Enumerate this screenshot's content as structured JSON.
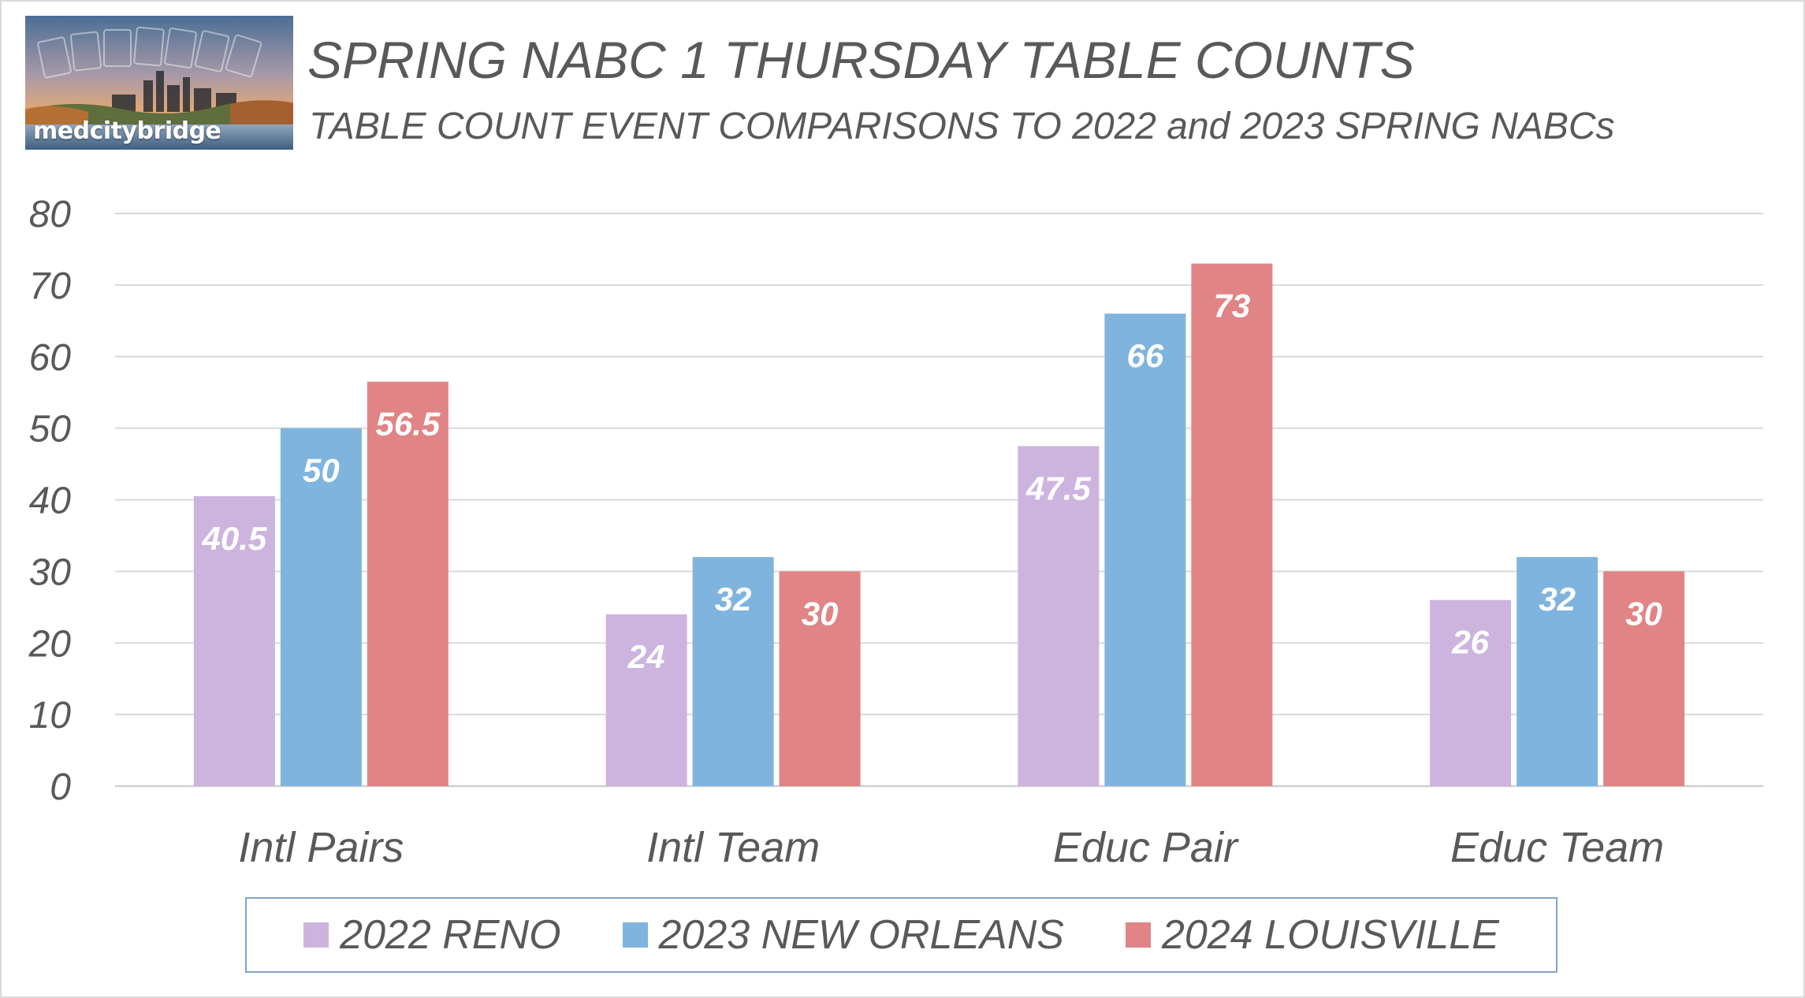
{
  "logo": {
    "text": "medcitybridge"
  },
  "chart_data": {
    "type": "bar",
    "title": "SPRING NABC 1 THURSDAY TABLE COUNTS",
    "subtitle": "TABLE COUNT EVENT COMPARISONS TO 2022 and 2023 SPRING NABCs",
    "categories": [
      "Intl Pairs",
      "Intl Team",
      "Educ Pair",
      "Educ Team"
    ],
    "series": [
      {
        "name": "2022 RENO",
        "color": "#cdb4df",
        "values": [
          40.5,
          24,
          47.5,
          26
        ],
        "labels": [
          "40.5",
          "24",
          "47.5",
          "26"
        ]
      },
      {
        "name": "2023 NEW ORLEANS",
        "color": "#7fb4de",
        "values": [
          50,
          32,
          66,
          32
        ],
        "labels": [
          "50",
          "32",
          "66",
          "32"
        ]
      },
      {
        "name": "2024 LOUISVILLE",
        "color": "#e08485",
        "values": [
          56.5,
          30,
          73,
          30
        ],
        "labels": [
          "56.5",
          "30",
          "73",
          "30"
        ]
      }
    ],
    "y_ticks": [
      "0",
      "10",
      "20",
      "30",
      "40",
      "50",
      "60",
      "70",
      "80"
    ],
    "ylim": [
      0,
      80
    ],
    "grid": true,
    "legend_position": "bottom"
  }
}
